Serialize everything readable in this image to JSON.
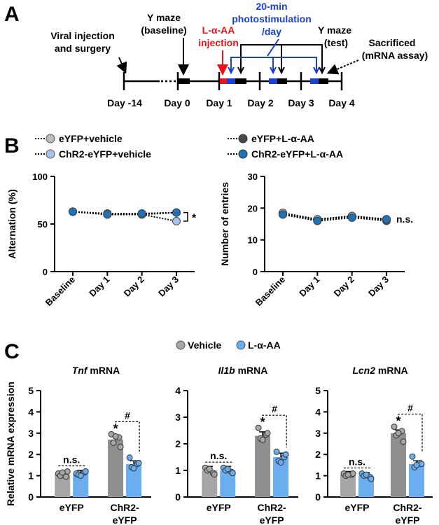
{
  "panels": {
    "a": "A",
    "b": "B",
    "c": "C"
  },
  "timeline": {
    "days": [
      "Day -14",
      "Day 0",
      "Day 1",
      "Day 2",
      "Day 3",
      "Day 4"
    ],
    "event_viral": [
      "Viral injection",
      "and surgery"
    ],
    "event_ymaze_baseline": [
      "Y maze",
      "(baseline)"
    ],
    "event_laa": [
      "L-α-AA",
      "injection"
    ],
    "event_photostim": [
      "20-min",
      "photostimulation",
      "/day"
    ],
    "event_ymaze_test": [
      "Y maze",
      "(test)"
    ],
    "event_sacrifice": [
      "Sacrificed",
      "(mRNA assay)"
    ]
  },
  "colors": {
    "eyfp_vehicle": "#bdbdbd",
    "eyfp_laa": "#4a4a4a",
    "chr2_vehicle": "#a9c4e8",
    "chr2_laa": "#1f72b8",
    "bar_vehicle": "#a6a6a6",
    "bar_laa": "#6aaef0",
    "red": "#e8141c",
    "blue": "#1a3fd6"
  },
  "chart_data": [
    {
      "type": "line",
      "panel": "B-left",
      "ylabel": "Alternation (%)",
      "categories": [
        "Baseline",
        "Day 1",
        "Day 2",
        "Day 3"
      ],
      "ylim": [
        0,
        100
      ],
      "yticks": [
        "0",
        "50",
        "100"
      ],
      "series": [
        {
          "name": "eYFP+vehicle",
          "values": [
            63,
            60,
            60,
            62
          ]
        },
        {
          "name": "ChR2-eYFP+vehicle",
          "values": [
            63,
            60,
            60,
            53
          ]
        },
        {
          "name": "eYFP+L-α-AA",
          "values": [
            63,
            61,
            61,
            62
          ]
        },
        {
          "name": "ChR2-eYFP+L-α-AA",
          "values": [
            63,
            60,
            61,
            62
          ]
        }
      ],
      "annotation": "*"
    },
    {
      "type": "line",
      "panel": "B-right",
      "ylabel": "Number of entries",
      "categories": [
        "Baseline",
        "Day 1",
        "Day 2",
        "Day 3"
      ],
      "ylim": [
        0,
        30
      ],
      "yticks": [
        "0",
        "10",
        "20",
        "30"
      ],
      "series": [
        {
          "name": "eYFP+vehicle",
          "values": [
            18.5,
            16.5,
            17.5,
            16.5
          ]
        },
        {
          "name": "ChR2-eYFP+vehicle",
          "values": [
            18,
            16.5,
            17.5,
            16.5
          ]
        },
        {
          "name": "eYFP+L-α-AA",
          "values": [
            18,
            16,
            17,
            16
          ]
        },
        {
          "name": "ChR2-eYFP+L-α-AA",
          "values": [
            18,
            16,
            17,
            16.5
          ]
        }
      ],
      "annotation": "n.s."
    },
    {
      "type": "bar",
      "panel": "C-Tnf",
      "title_italic": "Tnf",
      "title_rest": " mRNA",
      "ylabel": "Relative mRNA expression",
      "categories": [
        "eYFP",
        "ChR2-eYFP"
      ],
      "ylim": [
        0,
        5
      ],
      "yticks": [
        "0",
        "1",
        "2",
        "3",
        "4",
        "5"
      ],
      "series": [
        {
          "name": "Vehicle",
          "values": [
            1.05,
            2.7
          ],
          "points": [
            [
              1.1,
              0.95,
              1.0,
              1.2,
              1.15
            ],
            [
              2.95,
              2.8,
              2.55,
              2.35,
              2.85
            ]
          ]
        },
        {
          "name": "L-α-AA",
          "values": [
            1.1,
            1.55
          ],
          "points": [
            [
              1.1,
              1.15,
              1.05,
              1.2,
              1.0
            ],
            [
              1.85,
              1.55,
              1.4,
              1.6,
              1.35
            ]
          ]
        }
      ],
      "annotations": {
        "ns": "n.s.",
        "star": "*",
        "hash": "#"
      }
    },
    {
      "type": "bar",
      "panel": "C-Il1b",
      "title_italic": "Il1b",
      "title_rest": " mRNA",
      "ylim": [
        0,
        4
      ],
      "yticks": [
        "0",
        "1",
        "2",
        "3",
        "4"
      ],
      "series": [
        {
          "name": "Vehicle",
          "values": [
            1.0,
            2.3
          ],
          "points": [
            [
              1.1,
              0.9,
              1.0,
              0.85,
              1.05
            ],
            [
              2.6,
              2.35,
              2.2,
              2.4,
              2.15
            ]
          ]
        },
        {
          "name": "L-α-AA",
          "values": [
            1.0,
            1.5
          ],
          "points": [
            [
              1.1,
              0.95,
              1.0,
              0.9,
              1.05
            ],
            [
              1.7,
              1.5,
              1.35,
              1.6,
              1.3
            ]
          ]
        }
      ],
      "annotations": {
        "ns": "n.s.",
        "star": "*",
        "hash": "#"
      }
    },
    {
      "type": "bar",
      "panel": "C-Lcn2",
      "title_italic": "Lcn2",
      "title_rest": " mRNA",
      "ylim": [
        0,
        5
      ],
      "yticks": [
        "0",
        "1",
        "2",
        "3",
        "4",
        "5"
      ],
      "series": [
        {
          "name": "Vehicle",
          "values": [
            1.05,
            3.0
          ],
          "points": [
            [
              1.1,
              1.05,
              1.0,
              1.1,
              1.05
            ],
            [
              3.3,
              3.1,
              2.9,
              2.6,
              3.0
            ]
          ]
        },
        {
          "name": "L-α-AA",
          "values": [
            1.0,
            1.55
          ],
          "points": [
            [
              1.1,
              0.95,
              1.0,
              0.85,
              1.05
            ],
            [
              1.9,
              1.6,
              1.4,
              1.55,
              1.5
            ]
          ]
        }
      ],
      "annotations": {
        "ns": "n.s.",
        "star": "*",
        "hash": "#"
      }
    }
  ],
  "legend_b": [
    "eYFP+vehicle",
    "ChR2-eYFP+vehicle",
    "eYFP+L-α-AA",
    "ChR2-eYFP+L-α-AA"
  ],
  "legend_c": [
    "Vehicle",
    "L-α-AA"
  ],
  "group_labels": {
    "g1": "eYFP",
    "g2": [
      "ChR2-",
      "eYFP"
    ]
  }
}
